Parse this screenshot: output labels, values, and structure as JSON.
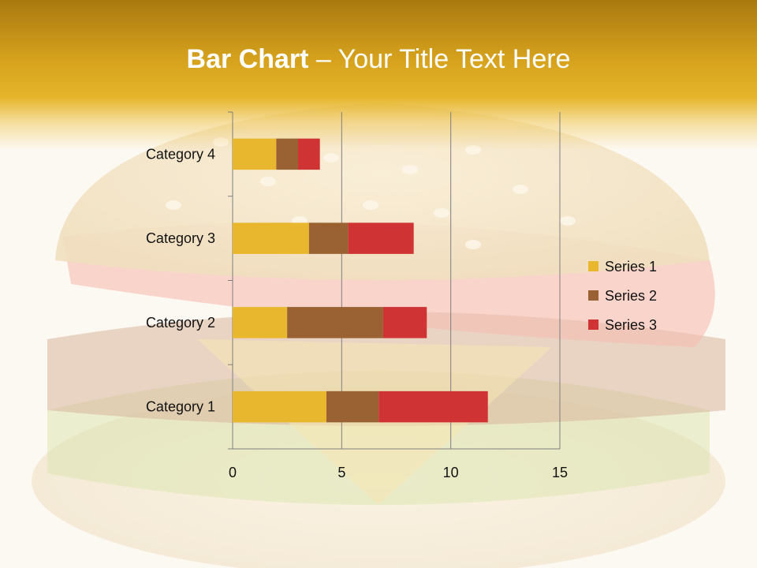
{
  "title": {
    "bold": "Bar Chart",
    "rest": " – Your Title Text Here"
  },
  "colors": {
    "header": "#d9a51f",
    "background_image": "hamburger"
  },
  "chart_data": {
    "type": "bar",
    "orientation": "horizontal",
    "stacked": true,
    "categories": [
      "Category 1",
      "Category 2",
      "Category 3",
      "Category 4"
    ],
    "series": [
      {
        "name": "Series 1",
        "values": [
          4.3,
          2.5,
          3.5,
          2.0
        ],
        "color": "#e9b72e"
      },
      {
        "name": "Series 2",
        "values": [
          2.4,
          4.4,
          1.8,
          1.0
        ],
        "color": "#9a6233"
      },
      {
        "name": "Series 3",
        "values": [
          5.0,
          2.0,
          3.0,
          1.0
        ],
        "color": "#cf3333"
      }
    ],
    "xlim": [
      0,
      15
    ],
    "xticks": [
      "0",
      "5",
      "10",
      "15"
    ],
    "grid": true,
    "legend_position": "right"
  }
}
